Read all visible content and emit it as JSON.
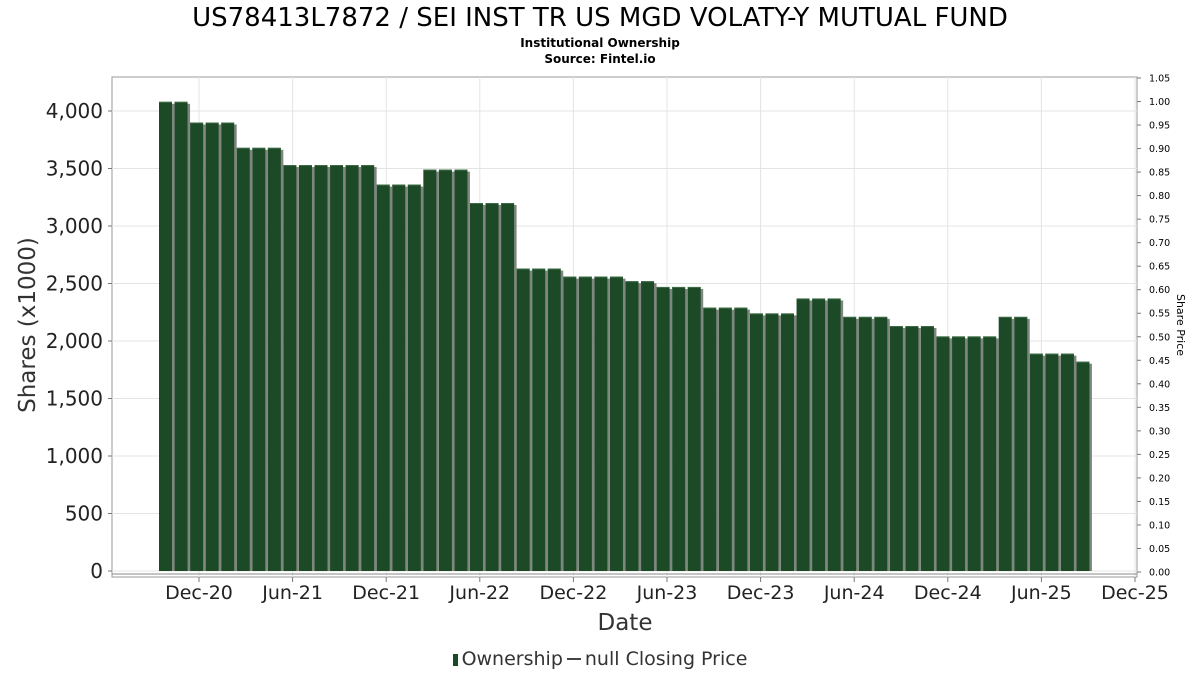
{
  "chart_data": {
    "type": "bar",
    "title": "US78413L7872 / SEI INST TR US MGD VOLATY-Y MUTUAL FUND",
    "subtitle": "Institutional Ownership",
    "source": "Source: Fintel.io",
    "xlabel": "Date",
    "ylabel": "Shares (x1000)",
    "ylabel_right": "Share Price",
    "x_ticks": [
      "Dec-20",
      "Jun-21",
      "Dec-21",
      "Jun-22",
      "Dec-22",
      "Jun-23",
      "Dec-23",
      "Jun-24",
      "Dec-24",
      "Jun-25",
      "Dec-25"
    ],
    "y_ticks": [
      "0",
      "500",
      "1,000",
      "1,500",
      "2,000",
      "2,500",
      "3,000",
      "3,500",
      "4,000"
    ],
    "y_right_ticks": [
      "0.00",
      "0.05",
      "0.10",
      "0.15",
      "0.20",
      "0.25",
      "0.30",
      "0.35",
      "0.40",
      "0.45",
      "0.50",
      "0.55",
      "0.60",
      "0.65",
      "0.70",
      "0.75",
      "0.80",
      "0.85",
      "0.90",
      "0.95",
      "1.00",
      "1.05"
    ],
    "ylim": [
      0,
      4290
    ],
    "ylim_right": [
      0,
      1.05
    ],
    "grid": true,
    "legend_position": "bottom",
    "series": [
      {
        "name": "Ownership",
        "color": "#1d4a26",
        "values": [
          4080,
          4080,
          3900,
          3900,
          3900,
          3680,
          3680,
          3680,
          3530,
          3530,
          3530,
          3530,
          3530,
          3530,
          3360,
          3360,
          3360,
          3490,
          3490,
          3490,
          3200,
          3200,
          3200,
          2630,
          2630,
          2630,
          2560,
          2560,
          2560,
          2560,
          2520,
          2520,
          2470,
          2470,
          2470,
          2290,
          2290,
          2290,
          2240,
          2240,
          2240,
          2370,
          2370,
          2370,
          2210,
          2210,
          2210,
          2130,
          2130,
          2130,
          2040,
          2040,
          2040,
          2040,
          2210,
          2210,
          1890,
          1890,
          1890,
          1820
        ]
      },
      {
        "name": "null Closing Price",
        "color": "#444444",
        "values": []
      }
    ]
  },
  "legend": {
    "ownership": "Ownership",
    "closing_price": "null Closing Price"
  }
}
